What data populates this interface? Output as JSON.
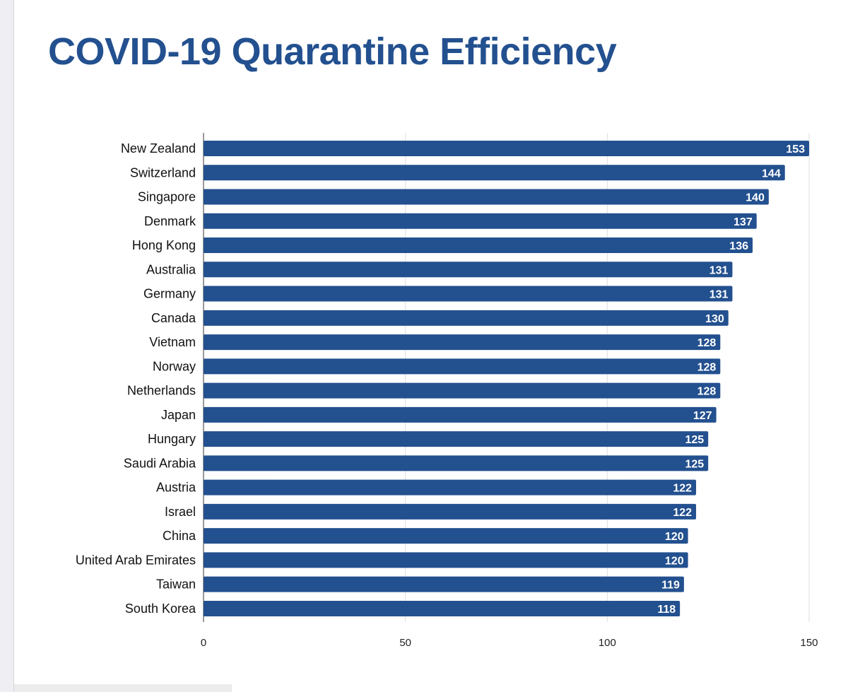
{
  "chart_data": {
    "type": "bar",
    "orientation": "horizontal",
    "title": "COVID-19 Quarantine Efficiency",
    "xlabel": "",
    "ylabel": "",
    "xlim": [
      0,
      150
    ],
    "xticks": [
      0,
      50,
      100,
      150
    ],
    "grid": true,
    "bar_color": "#23508f",
    "categories": [
      "New Zealand",
      "Switzerland",
      "Singapore",
      "Denmark",
      "Hong Kong",
      "Australia",
      "Germany",
      "Canada",
      "Vietnam",
      "Norway",
      "Netherlands",
      "Japan",
      "Hungary",
      "Saudi Arabia",
      "Austria",
      "Israel",
      "China",
      "United Arab Emirates",
      "Taiwan",
      "South Korea"
    ],
    "values": [
      153,
      144,
      140,
      137,
      136,
      131,
      131,
      130,
      128,
      128,
      128,
      127,
      125,
      125,
      122,
      122,
      120,
      120,
      119,
      118
    ]
  }
}
